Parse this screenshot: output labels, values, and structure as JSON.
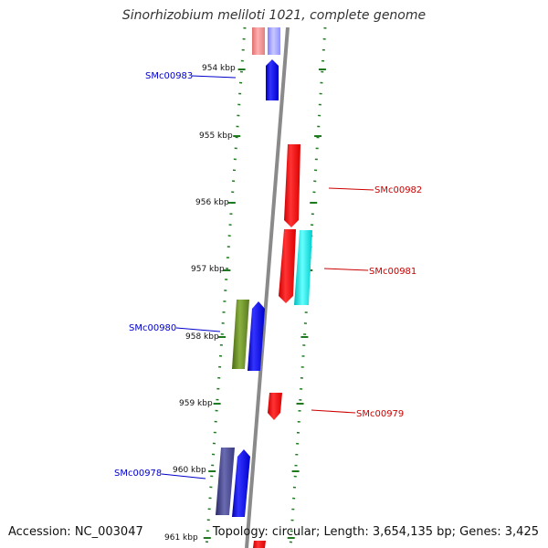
{
  "title": "Sinorhizobium meliloti 1021, complete genome",
  "accession_text": "Accession: NC_003047",
  "summary_text": "Topology: circular; Length: 3,654,135 bp; Genes: 3,425",
  "colors": {
    "backbone": "#8a8a8a",
    "tick_dots": "#1f7a1f",
    "forward_label": "#0000cc",
    "reverse_label": "#cc0000"
  },
  "scale_labels": [
    "954 kbp",
    "955 kbp",
    "956 kbp",
    "957 kbp",
    "958 kbp",
    "959 kbp",
    "960 kbp",
    "961 kbp"
  ],
  "genes": [
    {
      "id": "SMc00983",
      "strand": "forward",
      "color": "#0000ff"
    },
    {
      "id": "SMc00982",
      "strand": "reverse",
      "color": "#ff0000"
    },
    {
      "id": "SMc00981",
      "strand": "reverse",
      "color": "#ff0000"
    },
    {
      "id": "SMc00980",
      "strand": "forward",
      "color": "#0000ff"
    },
    {
      "id": "SMc00979",
      "strand": "reverse",
      "color": "#ff0000"
    },
    {
      "id": "SMc00978",
      "strand": "forward",
      "color": "#0000ff"
    }
  ]
}
